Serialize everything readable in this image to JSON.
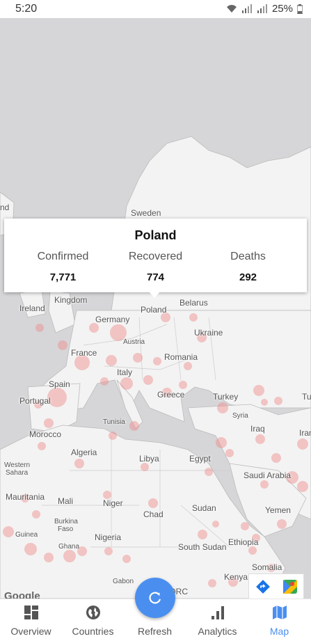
{
  "status": {
    "time": "5:20",
    "battery": "25%"
  },
  "popup": {
    "country": "Poland",
    "columns": [
      {
        "label": "Confirmed",
        "value": "7,771"
      },
      {
        "label": "Recovered",
        "value": "774"
      },
      {
        "label": "Deaths",
        "value": "292"
      }
    ]
  },
  "map": {
    "google": "Google",
    "labels": {
      "sweden": "Sweden",
      "ireland": "Ireland",
      "kingdom": "Kingdom",
      "germany": "Germany",
      "poland": "Poland",
      "belarus": "Belarus",
      "ukraine": "Ukraine",
      "france": "France",
      "austria": "Austria",
      "romania": "Romania",
      "spain": "Spain",
      "italy": "Italy",
      "portugal": "Portugal",
      "greece": "Greece",
      "turkey": "Turkey",
      "tunisia": "Tunisia",
      "syria": "Syria",
      "iraq": "Iraq",
      "iran": "Iran",
      "morocco": "Morocco",
      "algeria": "Algeria",
      "libya": "Libya",
      "egypt": "Egypt",
      "western": "Western",
      "sahara": "Sahara",
      "saudi": "Saudi Arabia",
      "mauritania": "Mauritania",
      "mali": "Mali",
      "niger": "Niger",
      "chad": "Chad",
      "sudan": "Sudan",
      "yemen": "Yemen",
      "burkina": "Burkina",
      "faso": "Faso",
      "guinea": "Guinea",
      "nigeria": "Nigeria",
      "ghana": "Ghana",
      "ethiopia": "Ethiopia",
      "southsudan": "South Sudan",
      "somalia": "Somalia",
      "gabon": "Gabon",
      "kenya": "Kenya",
      "drc": "DRC",
      "and": "nd"
    }
  },
  "nav": {
    "items": [
      {
        "label": "Overview"
      },
      {
        "label": "Countries"
      },
      {
        "label": "Refresh"
      },
      {
        "label": "Analytics"
      },
      {
        "label": "Map"
      }
    ]
  },
  "colors": {
    "accent": "#4a8ff0",
    "bubble": "#f08a8a",
    "land": "#f3f3f3",
    "water": "#d6d6d8"
  }
}
